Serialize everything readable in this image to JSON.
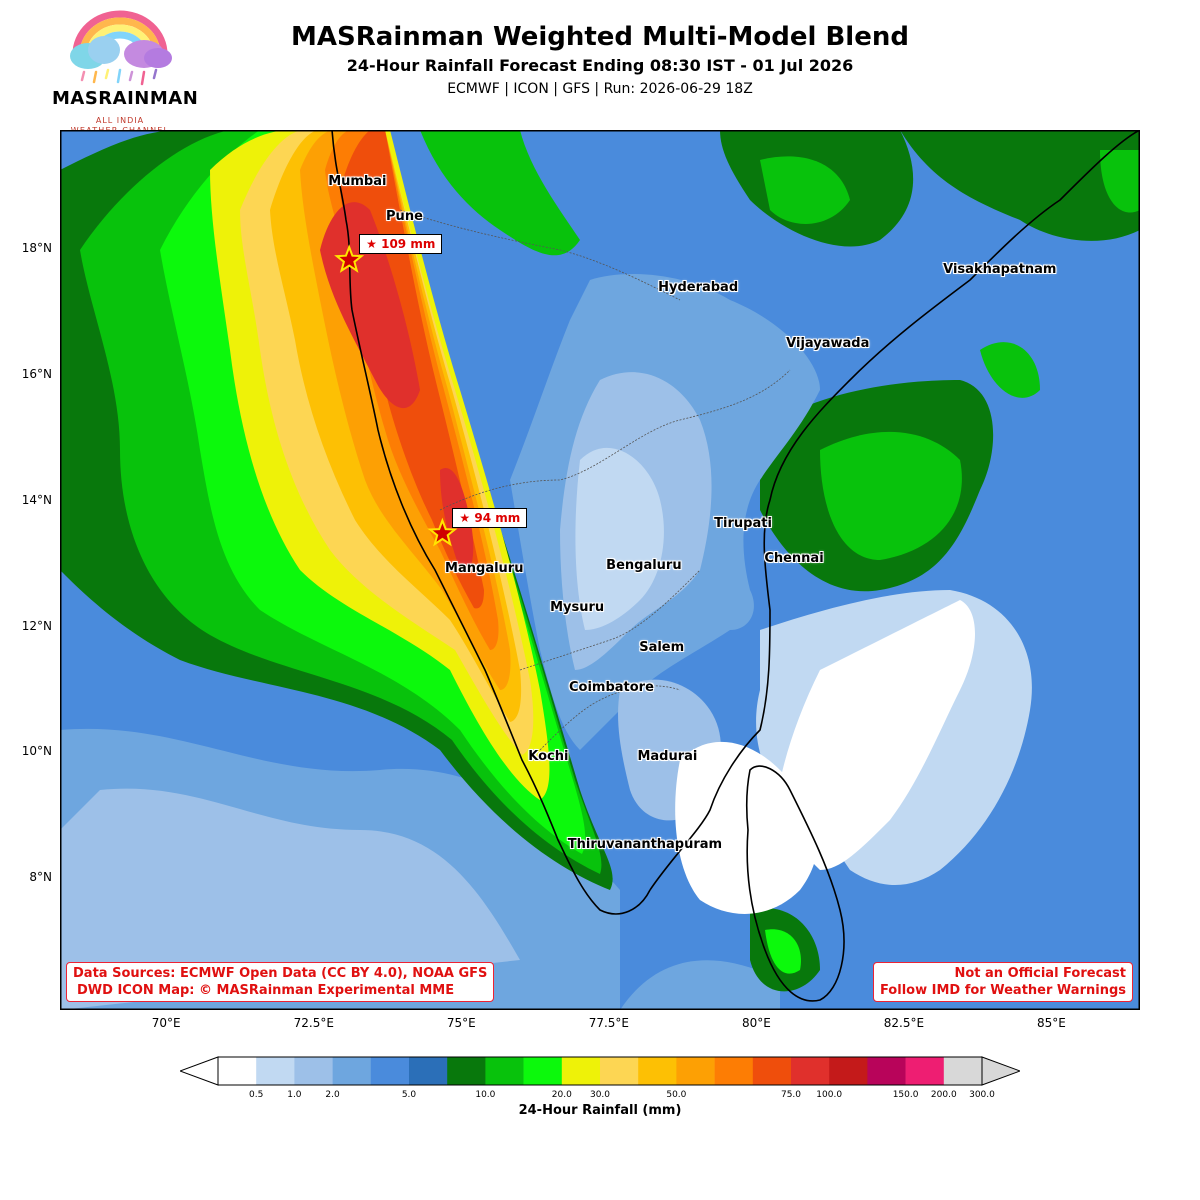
{
  "logo": {
    "name": "MASRAINMAN",
    "tagline_1": "ALL INDIA",
    "tagline_2": "WEATHER CHANNEL"
  },
  "header": {
    "title": "MASRainman Weighted Multi-Model Blend",
    "subtitle": "24-Hour Rainfall Forecast Ending 08:30 IST - 01 Jul 2026",
    "models_run": "ECMWF | ICON | GFS | Run: 2026-06-29 18Z"
  },
  "map": {
    "extent": {
      "lon": [
        68.2,
        86.5
      ],
      "lat": [
        5.9,
        19.9
      ]
    },
    "lon_ticks": [
      "70°E",
      "72.5°E",
      "75°E",
      "77.5°E",
      "80°E",
      "82.5°E",
      "85°E"
    ],
    "lat_ticks": [
      "8°N",
      "10°N",
      "12°N",
      "14°N",
      "16°N",
      "18°N"
    ],
    "cities": [
      {
        "name": "Mumbai",
        "lon": 72.88,
        "lat": 19.08
      },
      {
        "name": "Pune",
        "lon": 73.86,
        "lat": 18.52
      },
      {
        "name": "Hyderabad",
        "lon": 78.47,
        "lat": 17.38
      },
      {
        "name": "Visakhapatnam",
        "lon": 83.3,
        "lat": 17.68
      },
      {
        "name": "Vijayawada",
        "lon": 80.64,
        "lat": 16.5
      },
      {
        "name": "Tirupati",
        "lon": 79.42,
        "lat": 13.63
      },
      {
        "name": "Chennai",
        "lon": 80.27,
        "lat": 13.08
      },
      {
        "name": "Bengaluru",
        "lon": 77.59,
        "lat": 12.97
      },
      {
        "name": "Mangaluru",
        "lon": 74.86,
        "lat": 12.91
      },
      {
        "name": "Mysuru",
        "lon": 76.64,
        "lat": 12.3
      },
      {
        "name": "Salem",
        "lon": 78.15,
        "lat": 11.66
      },
      {
        "name": "Coimbatore",
        "lon": 76.96,
        "lat": 11.02
      },
      {
        "name": "Madurai",
        "lon": 78.12,
        "lat": 9.93
      },
      {
        "name": "Kochi",
        "lon": 76.27,
        "lat": 9.93
      },
      {
        "name": "Thiruvananthapuram",
        "lon": 76.94,
        "lat": 8.52
      }
    ],
    "peaks": [
      {
        "label": "★ 109 mm",
        "lon": 73.1,
        "lat": 17.83
      },
      {
        "label": "★ 94 mm",
        "lon": 74.68,
        "lat": 13.48
      }
    ],
    "note_left_1": "Data Sources: ECMWF Open Data (CC BY 4.0), NOAA GFS",
    "note_left_2": "DWD ICON Map: © MASRainman Experimental MME",
    "note_right_1": "Not an Official Forecast",
    "note_right_2": "Follow IMD for Weather Warnings",
    "colors": {
      "ocean": "#4a8bdc",
      "border": "#000000",
      "star": "#d00000",
      "star_fill": "#ffe600"
    }
  },
  "colorbar": {
    "label": "24-Hour Rainfall (mm)",
    "colors": [
      "#ffffff",
      "#c1d9f2",
      "#9dc0e8",
      "#6ea6df",
      "#4a8bdc",
      "#2b6fb8",
      "#08780c",
      "#08c20c",
      "#0cf90c",
      "#eef208",
      "#fdd653",
      "#fdc004",
      "#fda004",
      "#fd7d04",
      "#ef4e0c",
      "#e0302c",
      "#c41a1a",
      "#b8045a",
      "#ee1e72",
      "#d8d8d8"
    ],
    "ticks": [
      "0.5",
      "1.0",
      "2.0",
      "5.0",
      "10.0",
      "20.0",
      "30.0",
      "50.0",
      "75.0",
      "100.0",
      "150.0",
      "200.0",
      "300.0"
    ],
    "over_color": "#d8d8d8",
    "under_color": "#ffffff"
  }
}
